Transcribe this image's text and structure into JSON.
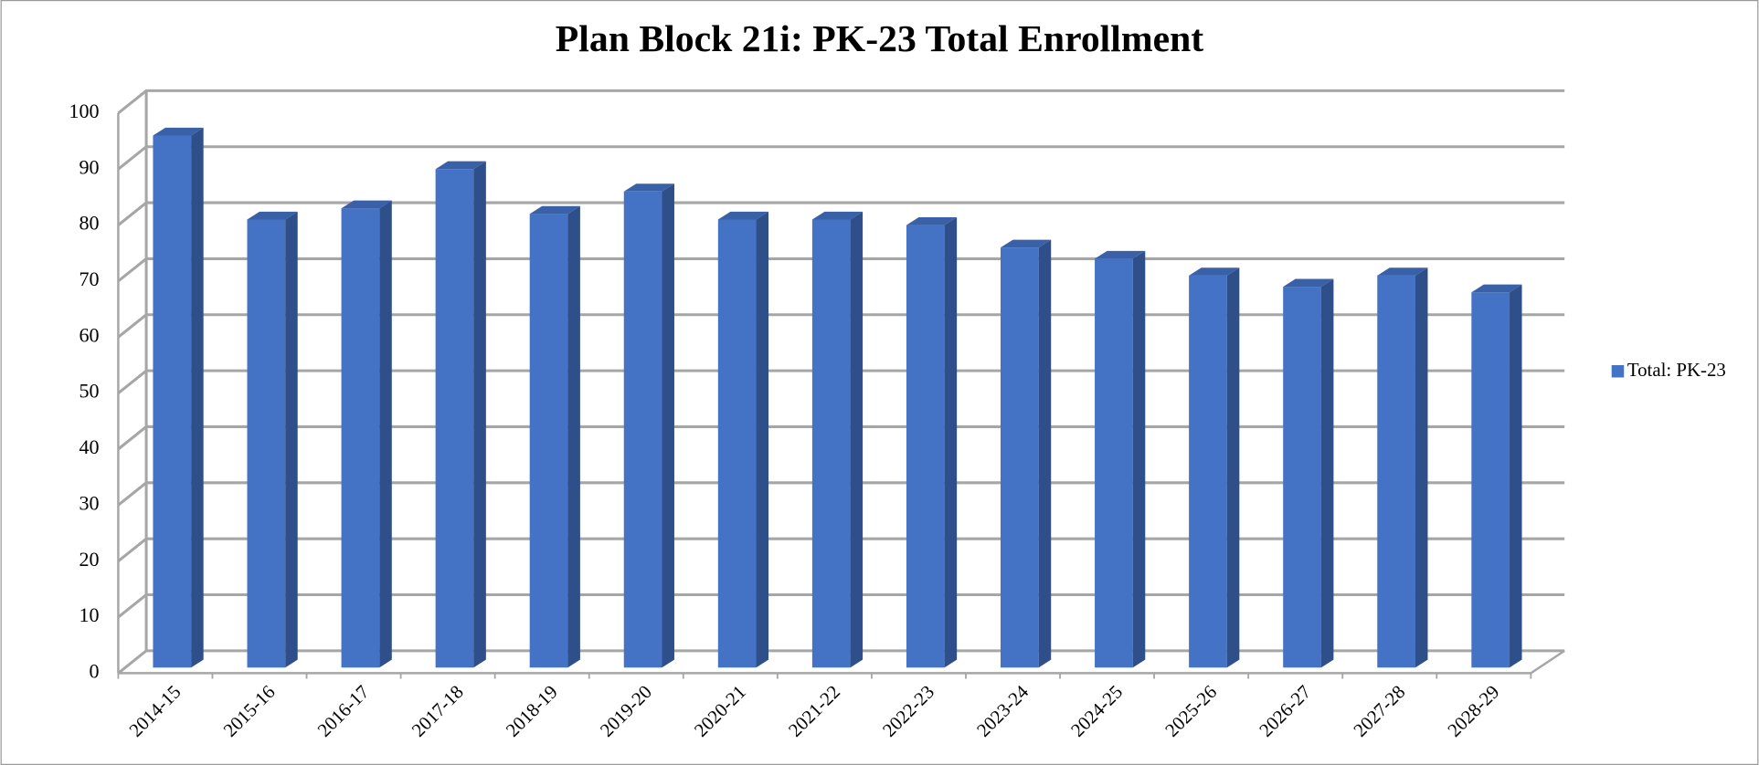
{
  "chart_data": {
    "type": "bar3d",
    "title": "Plan Block 21i: PK-23 Total Enrollment",
    "categories": [
      "2014-15",
      "2015-16",
      "2016-17",
      "2017-18",
      "2018-19",
      "2019-20",
      "2020-21",
      "2021-22",
      "2022-23",
      "2023-24",
      "2024-25",
      "2025-26",
      "2026-27",
      "2027-28",
      "2028-29"
    ],
    "series": [
      {
        "name": "Total: PK-23",
        "color": "#4472c4",
        "values": [
          95,
          80,
          82,
          89,
          81,
          85,
          80,
          80,
          79,
          75,
          73,
          70,
          68,
          70,
          67
        ]
      }
    ],
    "ylim": [
      0,
      100
    ],
    "yticks": [
      0,
      10,
      20,
      30,
      40,
      50,
      60,
      70,
      80,
      90,
      100
    ],
    "grid": true,
    "legend": "right"
  }
}
